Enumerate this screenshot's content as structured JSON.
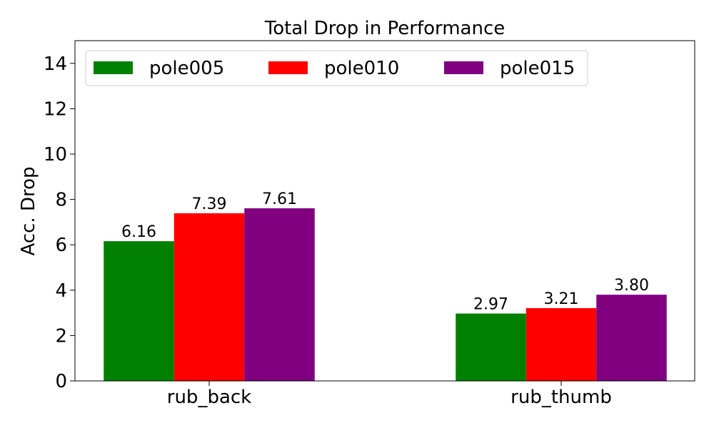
{
  "chart_data": {
    "type": "bar",
    "title": "Total Drop in Performance",
    "xlabel": "",
    "ylabel": "Acc. Drop",
    "categories": [
      "rub_back",
      "rub_thumb"
    ],
    "series": [
      {
        "name": "pole005",
        "values": [
          6.16,
          2.97
        ],
        "color": "#008000"
      },
      {
        "name": "pole010",
        "values": [
          7.39,
          3.21
        ],
        "color": "#ff0000"
      },
      {
        "name": "pole015",
        "values": [
          7.61,
          3.8
        ],
        "color": "#800080"
      }
    ],
    "value_labels": [
      [
        "6.16",
        "2.97"
      ],
      [
        "7.39",
        "3.21"
      ],
      [
        "7.61",
        "3.80"
      ]
    ],
    "ylim": [
      0,
      15
    ],
    "yticks": [
      0,
      2,
      4,
      6,
      8,
      10,
      12,
      14
    ],
    "grid": false,
    "legend_position": "top"
  }
}
